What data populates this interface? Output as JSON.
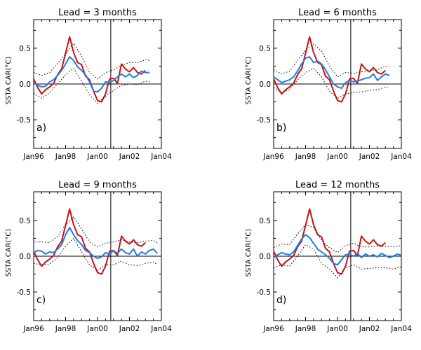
{
  "chart_data": [
    {
      "type": "line",
      "title": "Lead = 3 months",
      "panel_label": "a)",
      "ylabel": "SSTA CAR(°C)",
      "xlim": [
        1996.0,
        2004.0
      ],
      "ylim": [
        -0.9,
        0.9
      ],
      "x_ticks": [
        "Jan96",
        "Jan98",
        "Jan00",
        "Jan02",
        "Jan04"
      ],
      "y_ticks": [
        "0.5",
        "0.0",
        "-0.5"
      ],
      "reference_lines": {
        "y": 0.0,
        "x": 2000.83
      },
      "series": [
        {
          "role": "observed",
          "color": "#cc1111",
          "x": [
            1996.0,
            1996.25,
            1996.5,
            1996.75,
            1997.0,
            1997.25,
            1997.5,
            1997.75,
            1998.0,
            1998.25,
            1998.5,
            1998.75,
            1999.0,
            1999.25,
            1999.5,
            1999.75,
            2000.0,
            2000.25,
            2000.5,
            2000.75,
            2001.0,
            2001.25,
            2001.5,
            2001.75,
            2002.0,
            2002.25,
            2002.5,
            2002.75,
            2003.0
          ],
          "y": [
            0.07,
            -0.05,
            -0.14,
            -0.08,
            -0.04,
            0.01,
            0.13,
            0.21,
            0.43,
            0.66,
            0.44,
            0.3,
            0.27,
            0.11,
            0.06,
            -0.1,
            -0.23,
            -0.25,
            -0.14,
            0.07,
            0.08,
            0.01,
            0.28,
            0.21,
            0.17,
            0.23,
            0.16,
            0.14,
            0.19
          ]
        },
        {
          "role": "forecast",
          "color": "#1f7fe0",
          "x": [
            1996.0,
            1996.25,
            1996.5,
            1996.75,
            1997.0,
            1997.25,
            1997.5,
            1997.75,
            1998.0,
            1998.25,
            1998.5,
            1998.75,
            1999.0,
            1999.25,
            1999.5,
            1999.75,
            2000.0,
            2000.25,
            2000.5,
            2000.75,
            2001.0,
            2001.25,
            2001.5,
            2001.75,
            2002.0,
            2002.25,
            2002.5,
            2002.75,
            2003.0,
            2003.25
          ],
          "y": [
            0.02,
            -0.02,
            -0.04,
            -0.03,
            0.03,
            0.06,
            0.12,
            0.19,
            0.28,
            0.38,
            0.33,
            0.24,
            0.19,
            0.13,
            0.03,
            -0.1,
            -0.11,
            -0.06,
            0.03,
            0.02,
            0.05,
            0.1,
            0.14,
            0.1,
            0.14,
            0.09,
            0.12,
            0.18,
            0.16,
            0.16
          ]
        },
        {
          "role": "upper-bound",
          "color": "#000000",
          "dashed": true,
          "x": [
            1996.0,
            1996.5,
            1997.0,
            1997.5,
            1998.0,
            1998.5,
            1999.0,
            1999.5,
            2000.0,
            2000.5,
            2001.0,
            2001.5,
            2002.0,
            2002.5,
            2003.0,
            2003.25
          ],
          "y": [
            0.16,
            0.12,
            0.16,
            0.29,
            0.42,
            0.57,
            0.39,
            0.16,
            0.07,
            0.16,
            0.2,
            0.26,
            0.3,
            0.3,
            0.34,
            0.33
          ]
        },
        {
          "role": "lower-bound",
          "color": "#000000",
          "dashed": true,
          "x": [
            1996.0,
            1996.5,
            1997.0,
            1997.5,
            1998.0,
            1998.5,
            1999.0,
            1999.5,
            2000.0,
            2000.5,
            2001.0,
            2001.5,
            2002.0,
            2002.5,
            2003.0,
            2003.25
          ],
          "y": [
            -0.13,
            -0.2,
            -0.12,
            0.0,
            0.13,
            0.22,
            0.04,
            -0.15,
            -0.27,
            -0.17,
            -0.09,
            -0.02,
            0.0,
            -0.01,
            0.04,
            0.03
          ]
        }
      ]
    },
    {
      "type": "line",
      "title": "Lead = 6 months",
      "panel_label": "b)",
      "ylabel": "SSTA CAR(°C)",
      "xlim": [
        1996.0,
        2004.0
      ],
      "ylim": [
        -0.9,
        0.9
      ],
      "x_ticks": [
        "Jan96",
        "Jan98",
        "Jan00",
        "Jan02",
        "Jan04"
      ],
      "y_ticks": [
        "0.5",
        "0.0",
        "-0.5"
      ],
      "reference_lines": {
        "y": 0.0,
        "x": 2000.83
      },
      "series": [
        {
          "role": "observed",
          "color": "#cc1111",
          "x": [
            1996.0,
            1996.25,
            1996.5,
            1996.75,
            1997.0,
            1997.25,
            1997.5,
            1997.75,
            1998.0,
            1998.25,
            1998.5,
            1998.75,
            1999.0,
            1999.25,
            1999.5,
            1999.75,
            2000.0,
            2000.25,
            2000.5,
            2000.75,
            2001.0,
            2001.25,
            2001.5,
            2001.75,
            2002.0,
            2002.25,
            2002.5,
            2002.75,
            2003.0
          ],
          "y": [
            0.07,
            -0.05,
            -0.14,
            -0.08,
            -0.04,
            0.01,
            0.13,
            0.21,
            0.43,
            0.66,
            0.44,
            0.3,
            0.27,
            0.11,
            0.06,
            -0.1,
            -0.23,
            -0.25,
            -0.14,
            0.07,
            0.08,
            0.01,
            0.28,
            0.21,
            0.17,
            0.23,
            0.16,
            0.14,
            0.19
          ]
        },
        {
          "role": "forecast",
          "color": "#1f7fe0",
          "x": [
            1996.0,
            1996.25,
            1996.5,
            1996.75,
            1997.0,
            1997.25,
            1997.5,
            1997.75,
            1998.0,
            1998.25,
            1998.5,
            1998.75,
            1999.0,
            1999.25,
            1999.5,
            1999.75,
            2000.0,
            2000.25,
            2000.5,
            2000.75,
            2001.0,
            2001.25,
            2001.5,
            2001.75,
            2002.0,
            2002.25,
            2002.5,
            2002.75,
            2003.0,
            2003.25
          ],
          "y": [
            0.1,
            0.06,
            0.02,
            0.04,
            0.06,
            0.1,
            0.18,
            0.28,
            0.36,
            0.38,
            0.3,
            0.32,
            0.28,
            0.2,
            0.1,
            0.0,
            -0.04,
            -0.06,
            0.02,
            0.05,
            0.03,
            0.04,
            0.06,
            0.08,
            0.09,
            0.14,
            0.05,
            0.1,
            0.14,
            0.12
          ]
        },
        {
          "role": "upper-bound",
          "color": "#000000",
          "dashed": true,
          "x": [
            1996.0,
            1996.5,
            1997.0,
            1997.5,
            1998.0,
            1998.5,
            1999.0,
            1999.5,
            2000.0,
            2000.5,
            2001.0,
            2001.5,
            2002.0,
            2002.5,
            2003.0,
            2003.25
          ],
          "y": [
            0.2,
            0.14,
            0.18,
            0.33,
            0.47,
            0.56,
            0.46,
            0.25,
            0.1,
            0.16,
            0.15,
            0.17,
            0.19,
            0.2,
            0.25,
            0.24
          ]
        },
        {
          "role": "lower-bound",
          "color": "#000000",
          "dashed": true,
          "x": [
            1996.0,
            1996.5,
            1997.0,
            1997.5,
            1998.0,
            1998.5,
            1999.0,
            1999.5,
            2000.0,
            2000.5,
            2001.0,
            2001.5,
            2002.0,
            2002.5,
            2003.0,
            2003.25
          ],
          "y": [
            -0.05,
            -0.12,
            -0.08,
            0.06,
            0.16,
            0.22,
            0.1,
            -0.1,
            -0.2,
            -0.14,
            -0.12,
            -0.11,
            -0.09,
            -0.08,
            -0.04,
            -0.05
          ]
        }
      ]
    },
    {
      "type": "line",
      "title": "Lead = 9 months",
      "panel_label": "c)",
      "ylabel": "SSTA CAR(°C)",
      "xlim": [
        1996.0,
        2004.0
      ],
      "ylim": [
        -0.9,
        0.9
      ],
      "x_ticks": [
        "Jan96",
        "Jan98",
        "Jan00",
        "Jan02",
        "Jan04"
      ],
      "y_ticks": [
        "0.5",
        "0.0",
        "-0.5"
      ],
      "reference_lines": {
        "y": 0.0,
        "x": 2000.83
      },
      "series": [
        {
          "role": "observed",
          "color": "#cc1111",
          "x": [
            1996.0,
            1996.25,
            1996.5,
            1996.75,
            1997.0,
            1997.25,
            1997.5,
            1997.75,
            1998.0,
            1998.25,
            1998.5,
            1998.75,
            1999.0,
            1999.25,
            1999.5,
            1999.75,
            2000.0,
            2000.25,
            2000.5,
            2000.75,
            2001.0,
            2001.25,
            2001.5,
            2001.75,
            2002.0,
            2002.25,
            2002.5,
            2002.75,
            2003.0
          ],
          "y": [
            0.07,
            -0.05,
            -0.14,
            -0.08,
            -0.04,
            0.01,
            0.13,
            0.21,
            0.43,
            0.66,
            0.44,
            0.3,
            0.27,
            0.11,
            0.06,
            -0.1,
            -0.23,
            -0.25,
            -0.14,
            0.07,
            0.08,
            0.01,
            0.28,
            0.21,
            0.17,
            0.23,
            0.16,
            0.14,
            0.19
          ]
        },
        {
          "role": "forecast",
          "color": "#1f7fe0",
          "x": [
            1996.0,
            1996.25,
            1996.5,
            1996.75,
            1997.0,
            1997.25,
            1997.5,
            1997.75,
            1998.0,
            1998.25,
            1998.5,
            1998.75,
            1999.0,
            1999.25,
            1999.5,
            1999.75,
            2000.0,
            2000.25,
            2000.5,
            2000.75,
            2001.0,
            2001.25,
            2001.5,
            2001.75,
            2002.0,
            2002.25,
            2002.5,
            2002.75,
            2003.0,
            2003.25,
            2003.5,
            2003.75
          ],
          "y": [
            0.05,
            0.08,
            0.07,
            0.03,
            0.06,
            0.05,
            0.1,
            0.16,
            0.3,
            0.4,
            0.3,
            0.22,
            0.16,
            0.08,
            0.05,
            0.0,
            -0.03,
            -0.01,
            0.05,
            0.02,
            0.08,
            0.04,
            0.1,
            0.05,
            0.03,
            0.1,
            0.0,
            0.06,
            0.03,
            0.08,
            0.1,
            0.04
          ]
        },
        {
          "role": "upper-bound",
          "color": "#000000",
          "dashed": true,
          "x": [
            1996.0,
            1996.5,
            1997.0,
            1997.5,
            1998.0,
            1998.5,
            1999.0,
            1999.5,
            2000.0,
            2000.5,
            2001.0,
            2001.5,
            2002.0,
            2002.5,
            2003.0,
            2003.5,
            2003.75
          ],
          "y": [
            0.2,
            0.2,
            0.19,
            0.28,
            0.44,
            0.55,
            0.38,
            0.2,
            0.13,
            0.18,
            0.2,
            0.23,
            0.2,
            0.19,
            0.21,
            0.22,
            0.19
          ]
        },
        {
          "role": "lower-bound",
          "color": "#000000",
          "dashed": true,
          "x": [
            1996.0,
            1996.5,
            1997.0,
            1997.5,
            1998.0,
            1998.5,
            1999.0,
            1999.5,
            2000.0,
            2000.5,
            2001.0,
            2001.5,
            2002.0,
            2002.5,
            2003.0,
            2003.5,
            2003.75
          ],
          "y": [
            -0.1,
            -0.12,
            -0.11,
            -0.02,
            0.14,
            0.25,
            0.06,
            -0.12,
            -0.2,
            -0.12,
            -0.12,
            -0.07,
            -0.12,
            -0.13,
            -0.1,
            -0.08,
            -0.12
          ]
        }
      ]
    },
    {
      "type": "line",
      "title": "Lead = 12 months",
      "panel_label": "d)",
      "ylabel": "SSTA CAR(°C)",
      "xlim": [
        1996.0,
        2004.0
      ],
      "ylim": [
        -0.9,
        0.9
      ],
      "x_ticks": [
        "Jan96",
        "Jan98",
        "Jan00",
        "Jan02",
        "Jan04"
      ],
      "y_ticks": [
        "0.5",
        "0.0",
        "-0.5"
      ],
      "reference_lines": {
        "y": 0.0,
        "x": 2000.83
      },
      "series": [
        {
          "role": "observed",
          "color": "#cc1111",
          "x": [
            1996.0,
            1996.25,
            1996.5,
            1996.75,
            1997.0,
            1997.25,
            1997.5,
            1997.75,
            1998.0,
            1998.25,
            1998.5,
            1998.75,
            1999.0,
            1999.25,
            1999.5,
            1999.75,
            2000.0,
            2000.25,
            2000.5,
            2000.75,
            2001.0,
            2001.25,
            2001.5,
            2001.75,
            2002.0,
            2002.25,
            2002.5,
            2002.75,
            2003.0
          ],
          "y": [
            0.07,
            -0.05,
            -0.14,
            -0.08,
            -0.04,
            0.01,
            0.13,
            0.21,
            0.43,
            0.66,
            0.44,
            0.3,
            0.27,
            0.11,
            0.06,
            -0.1,
            -0.23,
            -0.25,
            -0.14,
            0.07,
            0.08,
            0.01,
            0.28,
            0.21,
            0.17,
            0.23,
            0.16,
            0.14,
            0.19
          ]
        },
        {
          "role": "forecast",
          "color": "#1f7fe0",
          "x": [
            1996.0,
            1996.25,
            1996.5,
            1996.75,
            1997.0,
            1997.25,
            1997.5,
            1997.75,
            1998.0,
            1998.25,
            1998.5,
            1998.75,
            1999.0,
            1999.25,
            1999.5,
            1999.75,
            2000.0,
            2000.25,
            2000.5,
            2000.75,
            2001.0,
            2001.25,
            2001.5,
            2001.75,
            2002.0,
            2002.25,
            2002.5,
            2002.75,
            2003.0,
            2003.25,
            2003.5,
            2003.75,
            2004.0
          ],
          "y": [
            -0.02,
            0.02,
            0.05,
            0.03,
            0.02,
            0.06,
            0.15,
            0.24,
            0.3,
            0.26,
            0.18,
            0.1,
            0.06,
            0.02,
            -0.03,
            -0.1,
            -0.12,
            -0.05,
            0.02,
            0.03,
            0.0,
            0.04,
            -0.02,
            0.03,
            0.0,
            0.02,
            -0.01,
            0.04,
            0.01,
            -0.02,
            0.0,
            0.03,
            0.01
          ]
        },
        {
          "role": "upper-bound",
          "color": "#000000",
          "dashed": true,
          "x": [
            1996.0,
            1996.5,
            1997.0,
            1997.5,
            1998.0,
            1998.5,
            1999.0,
            1999.5,
            2000.0,
            2000.5,
            2001.0,
            2001.5,
            2002.0,
            2002.5,
            2003.0,
            2003.5,
            2004.0
          ],
          "y": [
            0.12,
            0.17,
            0.16,
            0.31,
            0.44,
            0.4,
            0.22,
            0.12,
            0.05,
            0.15,
            0.18,
            0.13,
            0.13,
            0.14,
            0.14,
            0.13,
            0.15
          ]
        },
        {
          "role": "lower-bound",
          "color": "#000000",
          "dashed": true,
          "x": [
            1996.0,
            1996.5,
            1997.0,
            1997.5,
            1998.0,
            1998.5,
            1999.0,
            1999.5,
            2000.0,
            2000.5,
            2001.0,
            2001.5,
            2002.0,
            2002.5,
            2003.0,
            2003.5,
            2004.0
          ],
          "y": [
            -0.16,
            -0.12,
            -0.14,
            0.0,
            0.16,
            0.1,
            -0.1,
            -0.18,
            -0.3,
            -0.16,
            -0.12,
            -0.18,
            -0.17,
            -0.16,
            -0.16,
            -0.18,
            -0.15
          ]
        }
      ]
    }
  ]
}
